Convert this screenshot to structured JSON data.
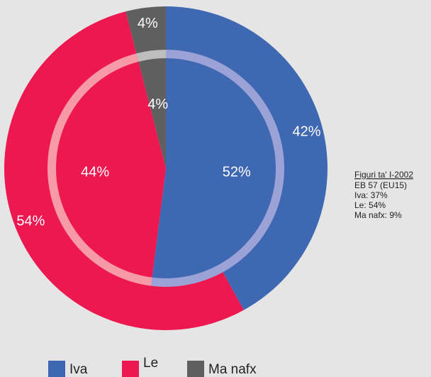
{
  "chart_data": {
    "type": "pie",
    "categories": [
      "Iva",
      "Le",
      "Ma nafx"
    ],
    "colors": [
      "#3f68b3",
      "#ee1851",
      "#5f5f5f"
    ],
    "ring_colors": [
      "#9ba3d6",
      "#f59aa6",
      "#bdbdbd"
    ],
    "rings": [
      {
        "values": [
          42,
          54,
          4
        ],
        "value_labels": [
          "42%",
          "54%",
          "4%"
        ]
      },
      {
        "values": [
          52,
          44,
          4
        ],
        "value_labels": [
          "52%",
          "44%",
          "4%"
        ]
      }
    ],
    "annotation": {
      "title": "Figuri ta' I-2002",
      "lines": [
        "EB 57 (EU15)",
        "Iva: 37%",
        "Le: 54%",
        "Ma nafx: 9%"
      ]
    }
  }
}
